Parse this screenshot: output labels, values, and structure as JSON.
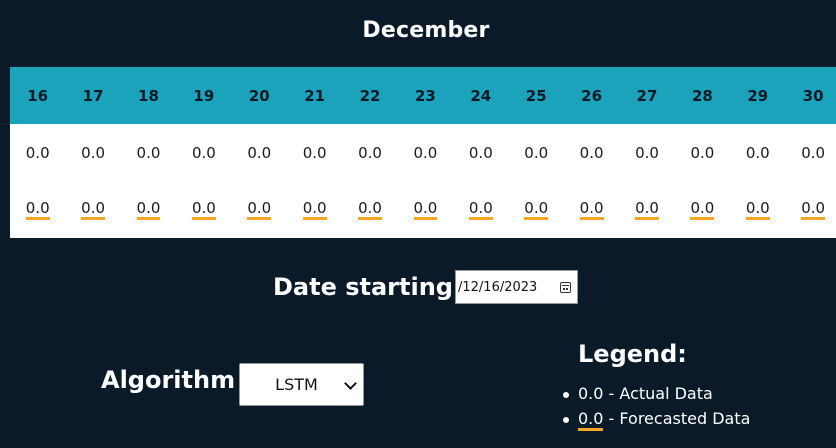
{
  "calendar": {
    "month": "December",
    "days": [
      "16",
      "17",
      "18",
      "19",
      "20",
      "21",
      "22",
      "23",
      "24",
      "25",
      "26",
      "27",
      "28",
      "29",
      "30"
    ],
    "actual": [
      "0.0",
      "0.0",
      "0.0",
      "0.0",
      "0.0",
      "0.0",
      "0.0",
      "0.0",
      "0.0",
      "0.0",
      "0.0",
      "0.0",
      "0.0",
      "0.0",
      "0.0"
    ],
    "forecast": [
      "0.0",
      "0.0",
      "0.0",
      "0.0",
      "0.0",
      "0.0",
      "0.0",
      "0.0",
      "0.0",
      "0.0",
      "0.0",
      "0.0",
      "0.0",
      "0.0",
      "0.0"
    ]
  },
  "date_filter": {
    "label": "Date starting:",
    "value": "/12/16/2023"
  },
  "algorithm": {
    "label": "Algorithm",
    "selected": "LSTM"
  },
  "legend": {
    "title": "Legend:",
    "items": [
      {
        "value": "0.0",
        "text": " - Actual Data"
      },
      {
        "value": "0.0",
        "text": " - Forecasted Data"
      }
    ]
  },
  "colors": {
    "background": "#0a1a28",
    "header": "#1aa3bb",
    "forecast_underline": "#f5a623"
  }
}
